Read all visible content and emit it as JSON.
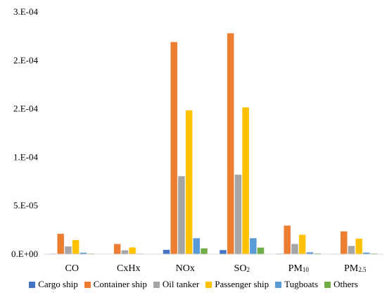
{
  "chart_data": {
    "type": "bar",
    "categories": [
      {
        "base": "CO",
        "sub": ""
      },
      {
        "base": "CxHx",
        "sub": ""
      },
      {
        "base": "NOx",
        "sub": ""
      },
      {
        "base": "SO",
        "sub": "2"
      },
      {
        "base": "PM",
        "sub": "10"
      },
      {
        "base": "PM",
        "sub": "2.5"
      }
    ],
    "y_tick_labels": [
      "0.E+00",
      "5.E-05",
      "1.E-04",
      "2.E-04",
      "2.E-04",
      "3.E-04"
    ],
    "ylim": [
      0,
      0.00025
    ],
    "grid": false,
    "legend_position": "bottom",
    "series": [
      {
        "name": "Cargo ship",
        "color": "#4472C4",
        "values": [
          5e-07,
          3e-07,
          4.5e-06,
          4.2e-06,
          5e-07,
          4e-07
        ]
      },
      {
        "name": "Container ship",
        "color": "#ED7D31",
        "values": [
          2.1e-05,
          1.05e-05,
          0.000219,
          0.000228,
          2.95e-05,
          2.35e-05
        ]
      },
      {
        "name": "Oil tanker",
        "color": "#A5A5A5",
        "values": [
          8e-06,
          4e-06,
          8.05e-05,
          8.2e-05,
          1.05e-05,
          8.5e-06
        ]
      },
      {
        "name": "Passenger ship",
        "color": "#FFC000",
        "values": [
          1.45e-05,
          7e-06,
          0.0001485,
          0.0001515,
          2e-05,
          1.6e-05
        ]
      },
      {
        "name": "Tugboats",
        "color": "#5B9BD5",
        "values": [
          1.5e-06,
          5e-07,
          1.65e-05,
          1.65e-05,
          2e-06,
          1.6e-06
        ]
      },
      {
        "name": "Others",
        "color": "#70AD47",
        "values": [
          6e-07,
          3e-07,
          6e-06,
          6.8e-06,
          8e-07,
          7e-07
        ]
      }
    ]
  }
}
